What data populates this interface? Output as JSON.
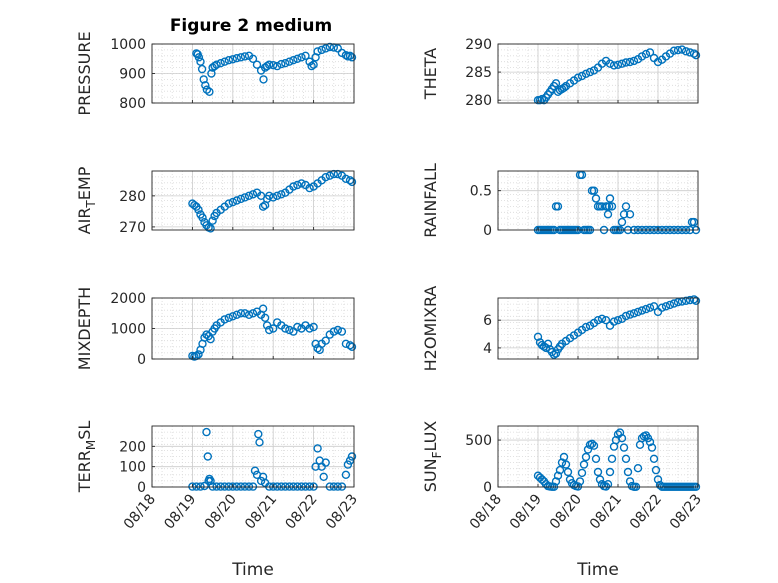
{
  "figure": {
    "title": "Figure 2 medium",
    "marker_color": "#0072BD",
    "grid": true,
    "minor_grid": true
  },
  "chart_data": [
    {
      "type": "scatter",
      "ylabel": "PRESSURE",
      "title": "Figure 2 medium",
      "xlabel": "",
      "xlim": [
        "08/18",
        "08/23"
      ],
      "xticks": [
        "08/18",
        "08/19",
        "08/20",
        "08/21",
        "08/22",
        "08/23"
      ],
      "ylim": [
        800,
        1000
      ],
      "yticks": [
        800,
        900,
        1000
      ],
      "series": [
        {
          "x": [
            1.1,
            1.13,
            1.16,
            1.2,
            1.24,
            1.28,
            1.32,
            1.36,
            1.42,
            1.47,
            1.5,
            1.55,
            1.6,
            1.7,
            1.8,
            1.9,
            2.0,
            2.1,
            2.2,
            2.3,
            2.4,
            2.5,
            2.6,
            2.7,
            2.76,
            2.8,
            2.85,
            2.9,
            3.0,
            3.1,
            3.2,
            3.3,
            3.4,
            3.5,
            3.6,
            3.7,
            3.8,
            3.9,
            3.95,
            4.0,
            4.05,
            4.1,
            4.2,
            4.3,
            4.4,
            4.5,
            4.6,
            4.7,
            4.8,
            4.85,
            4.9,
            4.95
          ],
          "y": [
            968,
            965,
            955,
            940,
            915,
            880,
            860,
            845,
            838,
            900,
            920,
            925,
            930,
            935,
            940,
            945,
            948,
            952,
            955,
            958,
            960,
            950,
            930,
            910,
            880,
            920,
            925,
            930,
            928,
            925,
            932,
            935,
            940,
            945,
            950,
            955,
            960,
            940,
            925,
            930,
            955,
            975,
            980,
            985,
            990,
            988,
            985,
            970,
            962,
            958,
            960,
            955
          ]
        }
      ]
    },
    {
      "type": "scatter",
      "ylabel": "THETA",
      "xlabel": "",
      "xlim": [
        "08/18",
        "08/23"
      ],
      "xticks": [
        "08/18",
        "08/19",
        "08/20",
        "08/21",
        "08/22",
        "08/23"
      ],
      "ylim": [
        279.5,
        290
      ],
      "yticks": [
        280,
        285,
        290
      ],
      "series": [
        {
          "x": [
            1.0,
            1.05,
            1.1,
            1.15,
            1.2,
            1.25,
            1.3,
            1.35,
            1.4,
            1.45,
            1.5,
            1.55,
            1.6,
            1.65,
            1.7,
            1.8,
            1.9,
            2.0,
            2.1,
            2.2,
            2.3,
            2.4,
            2.5,
            2.6,
            2.7,
            2.8,
            2.9,
            3.0,
            3.1,
            3.2,
            3.3,
            3.4,
            3.5,
            3.6,
            3.7,
            3.8,
            3.9,
            4.0,
            4.1,
            4.2,
            4.3,
            4.4,
            4.5,
            4.6,
            4.7,
            4.8,
            4.9,
            4.95
          ],
          "y": [
            280,
            280,
            280.2,
            280,
            280.5,
            281,
            281.5,
            282,
            282.5,
            283,
            281.5,
            281.8,
            282,
            282.2,
            282.5,
            283,
            283.5,
            284,
            284.3,
            284.7,
            285,
            285.3,
            285.8,
            286.5,
            287,
            286.5,
            286.2,
            286.3,
            286.5,
            286.7,
            286.8,
            287,
            287.3,
            287.8,
            288.2,
            288.5,
            287.5,
            286.8,
            287.2,
            287.8,
            288.3,
            288.8,
            288.9,
            289,
            288.7,
            288.5,
            288.3,
            288.0
          ]
        }
      ]
    },
    {
      "type": "scatter",
      "ylabel": "AIR_TEMP",
      "xlabel": "",
      "xlim": [
        "08/18",
        "08/23"
      ],
      "xticks": [
        "08/18",
        "08/19",
        "08/20",
        "08/21",
        "08/22",
        "08/23"
      ],
      "ylim": [
        269,
        288
      ],
      "yticks": [
        270,
        280
      ],
      "series": [
        {
          "x": [
            1.0,
            1.05,
            1.1,
            1.15,
            1.2,
            1.25,
            1.3,
            1.35,
            1.4,
            1.45,
            1.5,
            1.55,
            1.6,
            1.7,
            1.8,
            1.9,
            2.0,
            2.1,
            2.2,
            2.3,
            2.4,
            2.5,
            2.6,
            2.7,
            2.75,
            2.8,
            2.85,
            2.9,
            3.0,
            3.1,
            3.2,
            3.3,
            3.4,
            3.5,
            3.6,
            3.7,
            3.8,
            3.9,
            4.0,
            4.1,
            4.2,
            4.3,
            4.4,
            4.5,
            4.6,
            4.7,
            4.8,
            4.9,
            4.95
          ],
          "y": [
            277.5,
            277,
            276.5,
            275.5,
            274,
            273,
            271.5,
            270.5,
            269.8,
            269.5,
            272,
            273.5,
            274.5,
            275.5,
            276.5,
            277.5,
            278,
            278.5,
            279,
            279.5,
            280,
            280.5,
            281,
            280,
            276.5,
            277,
            279,
            280,
            279.5,
            280,
            280.5,
            281,
            282,
            283,
            283.5,
            284,
            283.5,
            282.5,
            283,
            284,
            285,
            286,
            286.5,
            287,
            287,
            286.5,
            285.5,
            285,
            284.5
          ]
        }
      ]
    },
    {
      "type": "scatter",
      "ylabel": "RAINFALL",
      "xlabel": "",
      "xlim": [
        "08/18",
        "08/23"
      ],
      "xticks": [
        "08/18",
        "08/19",
        "08/20",
        "08/21",
        "08/22",
        "08/23"
      ],
      "ylim": [
        0,
        0.75
      ],
      "yticks": [
        0,
        0.5
      ],
      "series": [
        {
          "x": [
            1.0,
            1.05,
            1.1,
            1.15,
            1.2,
            1.25,
            1.3,
            1.35,
            1.4,
            1.45,
            1.5,
            1.55,
            1.6,
            1.65,
            1.7,
            1.75,
            1.8,
            1.85,
            1.9,
            1.95,
            2.0,
            2.05,
            2.1,
            2.15,
            2.2,
            2.25,
            2.3,
            2.35,
            2.4,
            2.45,
            2.5,
            2.55,
            2.6,
            2.65,
            2.7,
            2.72,
            2.75,
            2.78,
            2.8,
            2.85,
            2.9,
            2.95,
            3.0,
            3.05,
            3.1,
            3.15,
            3.2,
            3.25,
            3.3,
            3.4,
            3.5,
            3.6,
            3.7,
            3.8,
            3.9,
            4.0,
            4.1,
            4.2,
            4.3,
            4.4,
            4.5,
            4.6,
            4.7,
            4.8,
            4.85,
            4.9,
            4.95
          ],
          "y": [
            0,
            0,
            0,
            0,
            0,
            0,
            0,
            0,
            0,
            0.3,
            0.3,
            0,
            0,
            0,
            0,
            0,
            0,
            0,
            0,
            0,
            0,
            0.7,
            0.7,
            0,
            0,
            0,
            0,
            0.5,
            0.5,
            0.4,
            0.3,
            0.3,
            0.3,
            0,
            0.3,
            0.3,
            0.2,
            0.3,
            0.4,
            0.3,
            0,
            0,
            0,
            0,
            0.1,
            0.2,
            0.3,
            0,
            0.2,
            0,
            0,
            0,
            0,
            0,
            0,
            0,
            0,
            0,
            0,
            0,
            0,
            0,
            0,
            0,
            0.1,
            0.1,
            0
          ]
        }
      ]
    },
    {
      "type": "scatter",
      "ylabel": "MIXDEPTH",
      "xlabel": "",
      "xlim": [
        "08/18",
        "08/23"
      ],
      "xticks": [
        "08/18",
        "08/19",
        "08/20",
        "08/21",
        "08/22",
        "08/23"
      ],
      "ylim": [
        0,
        2000
      ],
      "yticks": [
        0,
        1000,
        2000
      ],
      "series": [
        {
          "x": [
            1.0,
            1.05,
            1.1,
            1.15,
            1.2,
            1.25,
            1.3,
            1.35,
            1.4,
            1.45,
            1.5,
            1.55,
            1.6,
            1.7,
            1.8,
            1.9,
            2.0,
            2.1,
            2.2,
            2.3,
            2.4,
            2.5,
            2.6,
            2.7,
            2.75,
            2.8,
            2.85,
            2.9,
            3.0,
            3.1,
            3.2,
            3.3,
            3.4,
            3.5,
            3.6,
            3.7,
            3.8,
            3.9,
            4.0,
            4.05,
            4.1,
            4.15,
            4.2,
            4.3,
            4.4,
            4.5,
            4.6,
            4.7,
            4.8,
            4.9,
            4.95
          ],
          "y": [
            100,
            80,
            100,
            150,
            300,
            500,
            700,
            800,
            750,
            650,
            900,
            1000,
            1100,
            1200,
            1300,
            1350,
            1400,
            1450,
            1500,
            1500,
            1450,
            1500,
            1550,
            1450,
            1650,
            1350,
            1100,
            950,
            1000,
            1200,
            1100,
            1000,
            950,
            900,
            1050,
            1000,
            1100,
            1000,
            1050,
            500,
            350,
            300,
            500,
            600,
            800,
            900,
            950,
            900,
            500,
            450,
            400
          ]
        }
      ]
    },
    {
      "type": "scatter",
      "ylabel": "H2OMIXRA",
      "xlabel": "",
      "xlim": [
        "08/18",
        "08/23"
      ],
      "xticks": [
        "08/18",
        "08/19",
        "08/20",
        "08/21",
        "08/22",
        "08/23"
      ],
      "ylim": [
        3.2,
        7.6
      ],
      "yticks": [
        4,
        6
      ],
      "series": [
        {
          "x": [
            1.0,
            1.05,
            1.1,
            1.15,
            1.2,
            1.25,
            1.3,
            1.35,
            1.4,
            1.45,
            1.5,
            1.55,
            1.6,
            1.7,
            1.8,
            1.9,
            2.0,
            2.1,
            2.2,
            2.3,
            2.4,
            2.5,
            2.6,
            2.7,
            2.8,
            2.9,
            3.0,
            3.1,
            3.2,
            3.3,
            3.4,
            3.5,
            3.6,
            3.7,
            3.8,
            3.9,
            4.0,
            4.1,
            4.2,
            4.3,
            4.4,
            4.5,
            4.6,
            4.7,
            4.8,
            4.9,
            4.95
          ],
          "y": [
            4.8,
            4.4,
            4.2,
            4.1,
            4.0,
            4.3,
            3.9,
            3.7,
            3.5,
            3.6,
            3.9,
            4.1,
            4.3,
            4.5,
            4.7,
            4.9,
            5.1,
            5.3,
            5.5,
            5.6,
            5.8,
            6.0,
            6.1,
            6.0,
            5.6,
            5.9,
            6.0,
            6.1,
            6.3,
            6.4,
            6.5,
            6.6,
            6.7,
            6.8,
            6.9,
            7.0,
            6.6,
            6.9,
            7.0,
            7.1,
            7.2,
            7.3,
            7.35,
            7.4,
            7.45,
            7.5,
            7.4
          ]
        }
      ]
    },
    {
      "type": "scatter",
      "ylabel": "TERR_MSL",
      "xlabel": "Time",
      "xlim": [
        "08/18",
        "08/23"
      ],
      "xticks": [
        "08/18",
        "08/19",
        "08/20",
        "08/21",
        "08/22",
        "08/23"
      ],
      "ylim": [
        0,
        300
      ],
      "yticks": [
        0,
        100,
        200
      ],
      "series": [
        {
          "x": [
            1.0,
            1.1,
            1.2,
            1.3,
            1.35,
            1.38,
            1.4,
            1.42,
            1.45,
            1.5,
            1.6,
            1.7,
            1.8,
            1.9,
            2.0,
            2.1,
            2.2,
            2.3,
            2.4,
            2.5,
            2.55,
            2.6,
            2.63,
            2.66,
            2.7,
            2.75,
            2.8,
            2.9,
            3.0,
            3.1,
            3.2,
            3.3,
            3.4,
            3.5,
            3.6,
            3.7,
            3.8,
            3.9,
            4.0,
            4.05,
            4.1,
            4.15,
            4.2,
            4.25,
            4.3,
            4.4,
            4.5,
            4.6,
            4.7,
            4.8,
            4.85,
            4.9,
            4.95
          ],
          "y": [
            2,
            2,
            2,
            5,
            270,
            150,
            30,
            40,
            30,
            2,
            2,
            2,
            2,
            2,
            2,
            2,
            2,
            2,
            2,
            2,
            80,
            60,
            260,
            220,
            30,
            50,
            20,
            2,
            2,
            2,
            2,
            2,
            2,
            2,
            2,
            2,
            2,
            2,
            2,
            100,
            190,
            130,
            100,
            50,
            120,
            2,
            2,
            2,
            2,
            60,
            110,
            130,
            150
          ]
        }
      ]
    },
    {
      "type": "scatter",
      "ylabel": "SUN_FLUX",
      "xlabel": "Time",
      "xlim": [
        "08/18",
        "08/23"
      ],
      "xticks": [
        "08/18",
        "08/19",
        "08/20",
        "08/21",
        "08/22",
        "08/23"
      ],
      "ylim": [
        0,
        650
      ],
      "yticks": [
        0,
        500
      ],
      "series": [
        {
          "x": [
            1.0,
            1.05,
            1.1,
            1.15,
            1.2,
            1.25,
            1.3,
            1.35,
            1.4,
            1.45,
            1.5,
            1.55,
            1.6,
            1.65,
            1.7,
            1.75,
            1.8,
            1.85,
            1.9,
            1.95,
            2.0,
            2.05,
            2.1,
            2.15,
            2.2,
            2.25,
            2.3,
            2.35,
            2.4,
            2.45,
            2.5,
            2.55,
            2.6,
            2.65,
            2.7,
            2.75,
            2.8,
            2.85,
            2.9,
            2.95,
            3.0,
            3.05,
            3.1,
            3.15,
            3.2,
            3.25,
            3.3,
            3.35,
            3.4,
            3.45,
            3.5,
            3.55,
            3.6,
            3.65,
            3.7,
            3.75,
            3.8,
            3.85,
            3.9,
            3.95,
            4.0,
            4.05,
            4.1,
            4.15,
            4.2,
            4.25,
            4.3,
            4.35,
            4.4,
            4.45,
            4.5,
            4.55,
            4.6,
            4.65,
            4.7,
            4.75,
            4.8,
            4.85,
            4.9,
            4.95
          ],
          "y": [
            120,
            100,
            80,
            60,
            30,
            10,
            5,
            2,
            2,
            60,
            120,
            180,
            260,
            320,
            240,
            160,
            80,
            40,
            20,
            10,
            5,
            60,
            150,
            240,
            320,
            400,
            450,
            460,
            440,
            300,
            160,
            80,
            30,
            10,
            5,
            30,
            160,
            300,
            430,
            500,
            560,
            580,
            520,
            420,
            300,
            160,
            60,
            10,
            2,
            2,
            200,
            450,
            520,
            540,
            550,
            520,
            480,
            420,
            300,
            180,
            80,
            20,
            2,
            2,
            2,
            2,
            2,
            2,
            2,
            2,
            2,
            2,
            2,
            2,
            2,
            2,
            2,
            2,
            2,
            2
          ]
        }
      ]
    }
  ]
}
